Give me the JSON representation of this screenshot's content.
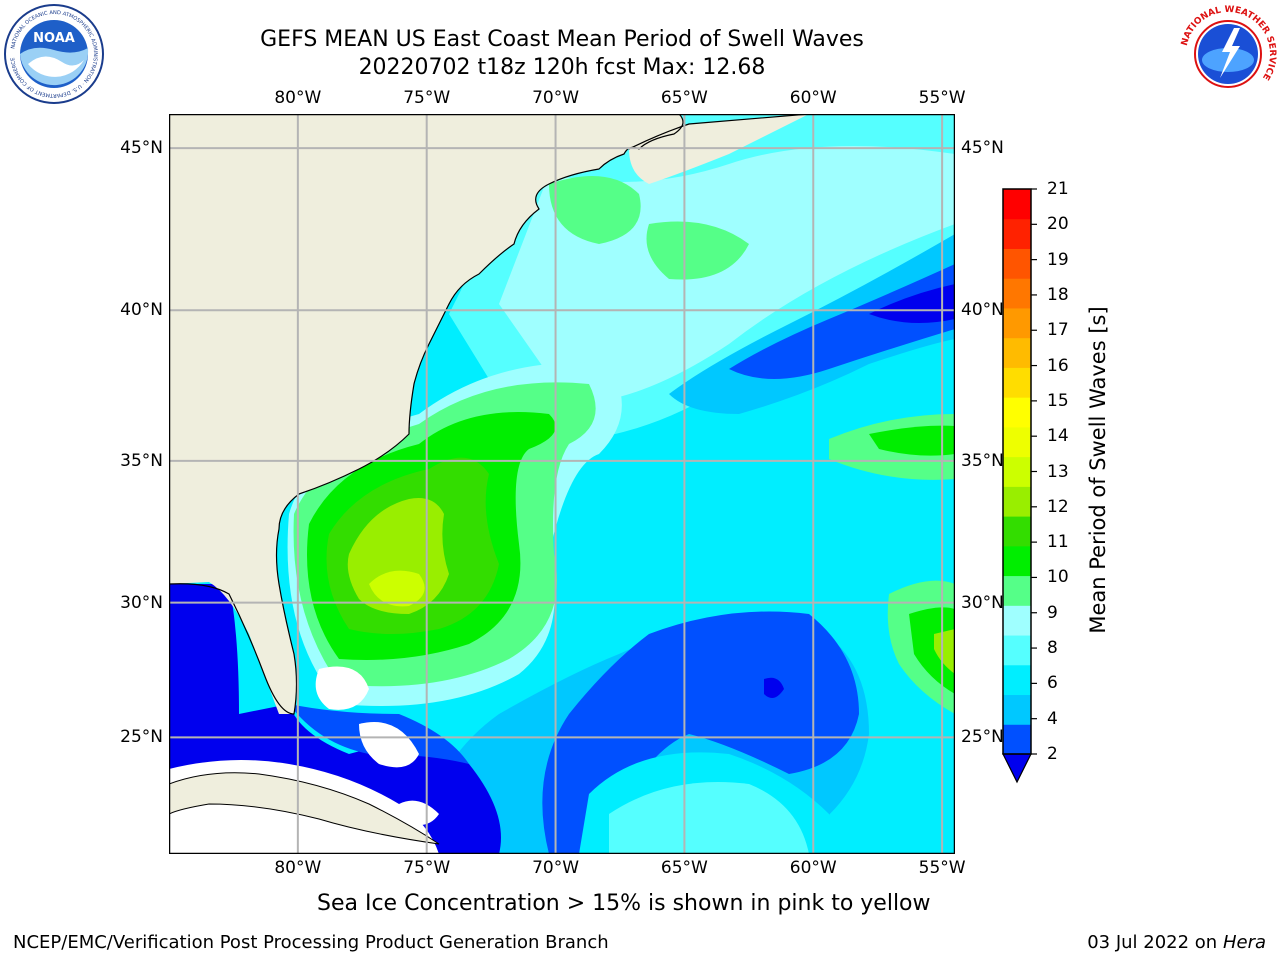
{
  "title": {
    "line1": "GEFS MEAN US East Coast Mean Period of Swell Waves",
    "line2": "20220702 t18z 120h fcst   Max: 12.68"
  },
  "map": {
    "lon_ticks": [
      "80°W",
      "75°W",
      "70°W",
      "65°W",
      "60°W",
      "55°W"
    ],
    "lat_ticks": [
      "45°N",
      "40°N",
      "35°N",
      "30°N",
      "25°N"
    ],
    "lon_values": [
      -80,
      -75,
      -70,
      -65,
      -60,
      -55
    ],
    "lat_values": [
      45,
      40,
      35,
      30,
      25
    ],
    "lon_range": [
      -85,
      -54.5
    ],
    "lat_range": [
      20.5,
      46
    ]
  },
  "colorbar": {
    "title": "Mean Period of Swell Waves [s]",
    "labels": [
      "21",
      "20",
      "19",
      "18",
      "17",
      "16",
      "15",
      "14",
      "13",
      "12",
      "11",
      "10",
      "9",
      "8",
      "6",
      "4",
      "2"
    ],
    "colors_bottom_to_top": [
      "#0050ff",
      "#00c8ff",
      "#00eeff",
      "#55ffff",
      "#9fffff",
      "#55ff88",
      "#00ee00",
      "#33dd00",
      "#99ee00",
      "#ccff00",
      "#eeff00",
      "#ffff00",
      "#ffdd00",
      "#ffbb00",
      "#ff9900",
      "#ff7700",
      "#ff5500",
      "#ff2200",
      "#ff0000"
    ],
    "under_color": "#0000ee"
  },
  "colors": {
    "land": "#efeedd",
    "ocean_base": "#00eeff",
    "grid": "#b4b4b4",
    "no_data": "#ffffff"
  },
  "logos": {
    "noaa": {
      "text": "NOAA",
      "ring_text": "NATIONAL OCEANIC AND ATMOSPHERIC ADMINISTRATION · U.S. DEPARTMENT OF COMMERCE"
    },
    "nws": {
      "ring_text": "NATIONAL WEATHER SERVICE"
    }
  },
  "note": "Sea Ice Concentration > 15% is shown in pink to yellow",
  "footer": {
    "left": "NCEP/EMC/Verification Post Processing Product Generation Branch",
    "date": "03 Jul 2022 on ",
    "host": "Hera"
  }
}
